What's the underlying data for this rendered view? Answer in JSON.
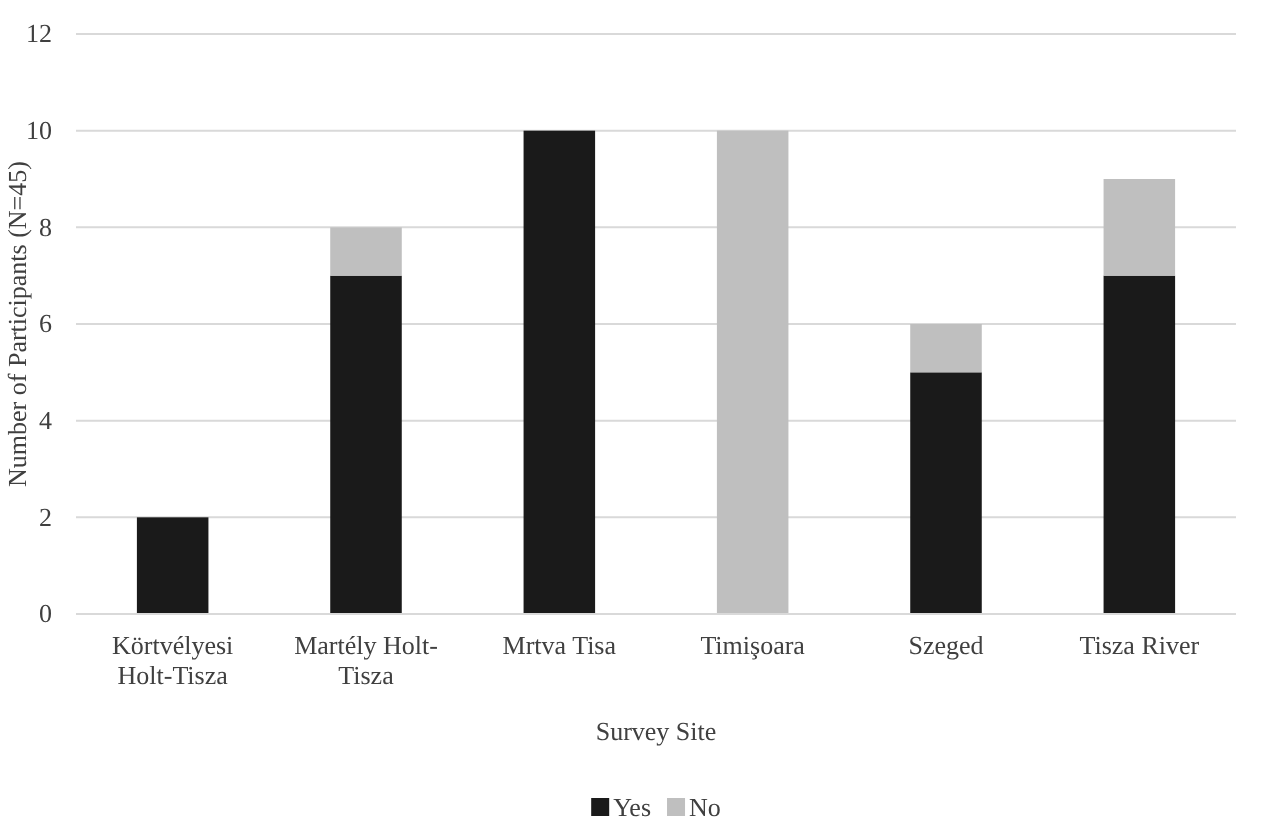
{
  "chart_data": {
    "type": "bar",
    "stacked": true,
    "xlabel": "Survey Site",
    "ylabel": "Number of Participants (N=45)",
    "categories": [
      "Körtvélyesi Holt-Tisza",
      "Martély Holt-Tisza",
      "Mrtva Tisa",
      "Timişoara",
      "Szeged",
      "Tisza River"
    ],
    "series": [
      {
        "name": "Yes",
        "color": "#1a1a1a",
        "values": [
          2,
          7,
          10,
          0,
          5,
          7
        ]
      },
      {
        "name": "No",
        "color": "#bfbfbf",
        "values": [
          0,
          1,
          0,
          10,
          1,
          2
        ]
      }
    ],
    "ylim": [
      0,
      12
    ],
    "yticks": [
      0,
      2,
      4,
      6,
      8,
      10,
      12
    ],
    "grid": "y",
    "legend": "bottom"
  }
}
